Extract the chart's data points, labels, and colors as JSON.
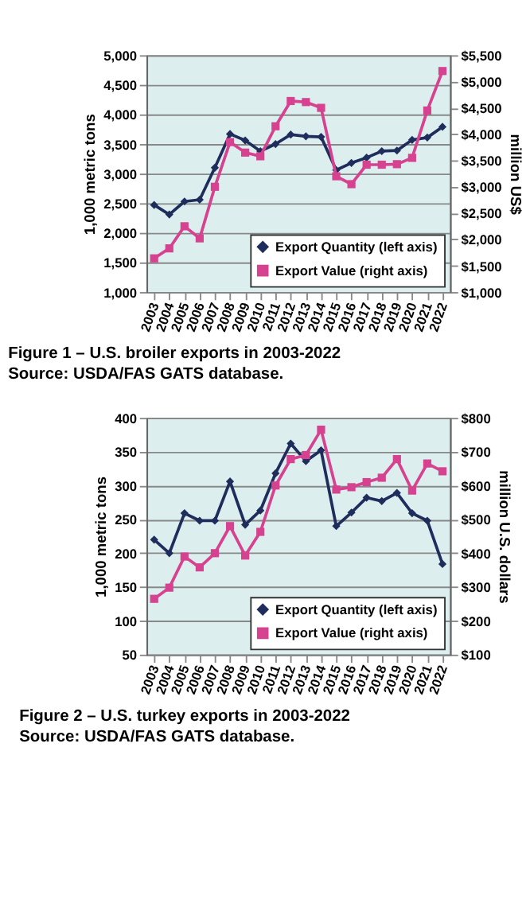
{
  "chart_data": [
    {
      "type": "line",
      "title": "Figure 1 – U.S. broiler exports in 2003-2022",
      "annotations": [
        "Source: USDA/FAS GATS database."
      ],
      "ylabel": "1,000 metric tons",
      "y2label": "million US$",
      "categories": [
        "2003",
        "2004",
        "2005",
        "2006",
        "2007",
        "2008",
        "2009",
        "2010",
        "2011",
        "2012",
        "2013",
        "2014",
        "2015",
        "2016",
        "2017",
        "2018",
        "2019",
        "2020",
        "2021",
        "2022"
      ],
      "series": [
        {
          "name": "Export Quantity (left axis)",
          "color": "#1f2d5c",
          "marker": "diamond",
          "values": [
            2470,
            2310,
            2530,
            2560,
            3100,
            3670,
            3560,
            3380,
            3500,
            3660,
            3630,
            3620,
            3060,
            3180,
            3270,
            3380,
            3390,
            3570,
            3610,
            3790
          ]
        },
        {
          "name": "Export Value (right axis)",
          "color": "#d6428f",
          "marker": "square",
          "axis": "y2",
          "values": [
            1640,
            1830,
            2250,
            2020,
            3000,
            3850,
            3650,
            3580,
            4150,
            4630,
            4610,
            4500,
            3200,
            3050,
            3420,
            3420,
            3430,
            3550,
            4450,
            5200
          ]
        }
      ],
      "ylim": [
        1000,
        5000
      ],
      "yticks": [
        {
          "value": 1000,
          "label": "1,000"
        },
        {
          "value": 1500,
          "label": "1,500"
        },
        {
          "value": 2000,
          "label": "2,000"
        },
        {
          "value": 2500,
          "label": "2,500"
        },
        {
          "value": 3000,
          "label": "3,000"
        },
        {
          "value": 3500,
          "label": "3,500"
        },
        {
          "value": 4000,
          "label": "4,000"
        },
        {
          "value": 4500,
          "label": "4,500"
        },
        {
          "value": 5000,
          "label": "5,000"
        }
      ],
      "y2lim": [
        1000,
        5500
      ],
      "y2ticks": [
        {
          "value": 1000,
          "label": "$1,000"
        },
        {
          "value": 1500,
          "label": "$1,500"
        },
        {
          "value": 2000,
          "label": "$2,000"
        },
        {
          "value": 2500,
          "label": "$2,500"
        },
        {
          "value": 3000,
          "label": "$3,000"
        },
        {
          "value": 3500,
          "label": "$3,500"
        },
        {
          "value": 4000,
          "label": "$4,000"
        },
        {
          "value": 4500,
          "label": "$4,500"
        },
        {
          "value": 5000,
          "label": "$5,000"
        },
        {
          "value": 5500,
          "label": "$5,500"
        }
      ],
      "grid": "y",
      "legend": "bottom right"
    },
    {
      "type": "line",
      "title": "Figure 2 – U.S. turkey exports in 2003-2022",
      "annotations": [
        "Source: USDA/FAS GATS database."
      ],
      "ylabel": "1,000 metric tons",
      "y2label": "million U.S. dollars",
      "categories": [
        "2003",
        "2004",
        "2005",
        "2006",
        "2007",
        "2008",
        "2009",
        "2010",
        "2011",
        "2012",
        "2013",
        "2014",
        "2015",
        "2016",
        "2017",
        "2018",
        "2019",
        "2020",
        "2021",
        "2022"
      ],
      "series": [
        {
          "name": "Export Quantity (left axis)",
          "color": "#1f2d5c",
          "marker": "diamond",
          "values": [
            220,
            200,
            259,
            248,
            248,
            306,
            242,
            263,
            318,
            362,
            336,
            352,
            240,
            260,
            282,
            277,
            289,
            259,
            248,
            184
          ]
        },
        {
          "name": "Export Value (right axis)",
          "color": "#d6428f",
          "marker": "square",
          "axis": "y2",
          "values": [
            265,
            298,
            390,
            358,
            400,
            480,
            393,
            463,
            600,
            678,
            690,
            765,
            588,
            595,
            610,
            623,
            678,
            585,
            665,
            642
          ]
        }
      ],
      "ylim": [
        50,
        400
      ],
      "yticks": [
        50,
        100,
        150,
        200,
        250,
        300,
        350,
        400
      ],
      "y2lim": [
        100,
        800
      ],
      "y2ticks": [
        {
          "value": 100,
          "label": "$100"
        },
        {
          "value": 200,
          "label": "$200"
        },
        {
          "value": 300,
          "label": "$300"
        },
        {
          "value": 400,
          "label": "$400"
        },
        {
          "value": 500,
          "label": "$500"
        },
        {
          "value": 600,
          "label": "$600"
        },
        {
          "value": 700,
          "label": "$700"
        },
        {
          "value": 800,
          "label": "$800"
        }
      ],
      "grid": "y",
      "legend": "bottom right"
    }
  ]
}
